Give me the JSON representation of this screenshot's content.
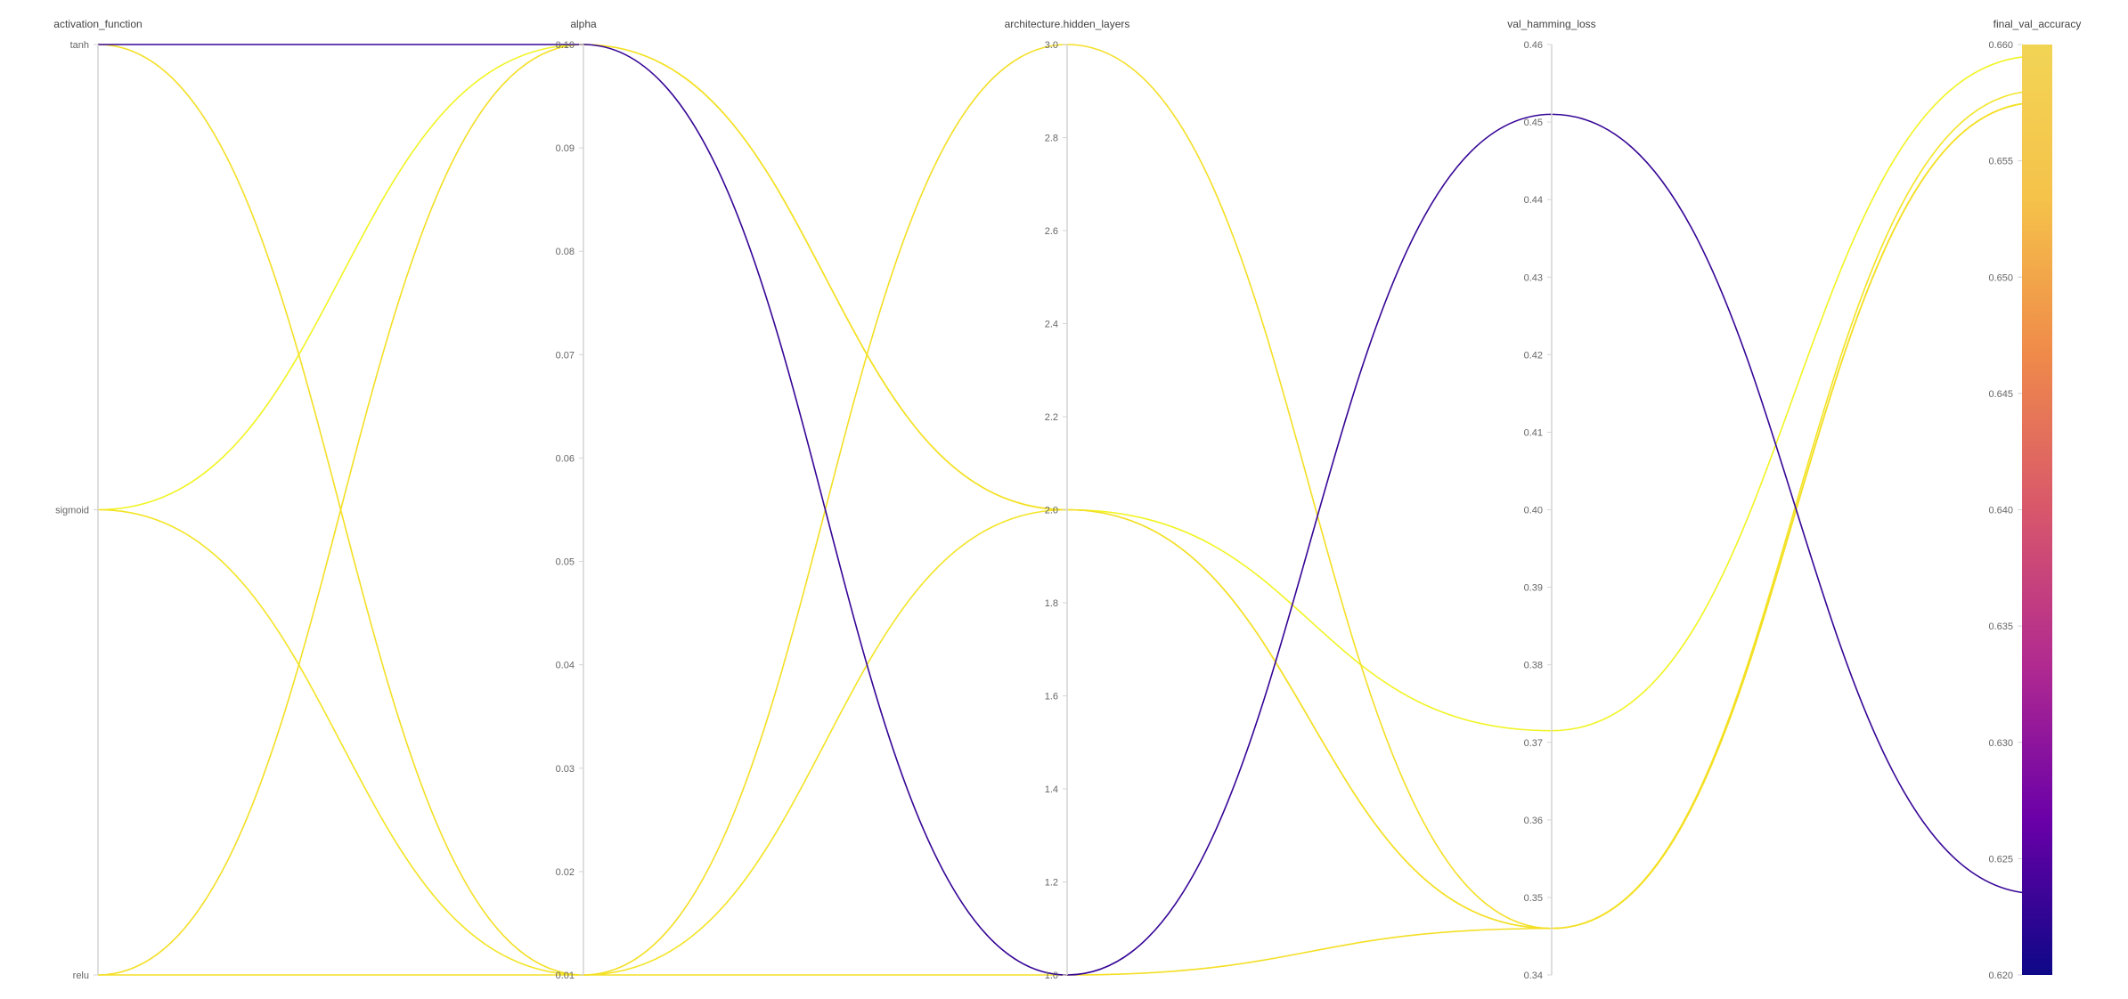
{
  "chart_data": {
    "type": "parallel_coordinates",
    "axes": [
      {
        "name": "activation_function",
        "kind": "categorical",
        "categories": [
          "tanh",
          "sigmoid",
          "relu"
        ]
      },
      {
        "name": "alpha",
        "kind": "numeric",
        "range": [
          0.01,
          0.1
        ],
        "ticks": [
          "0.10",
          "0.09",
          "0.08",
          "0.07",
          "0.06",
          "0.05",
          "0.04",
          "0.03",
          "0.02",
          "0.01"
        ]
      },
      {
        "name": "architecture.hidden_layers",
        "kind": "numeric",
        "range": [
          1.0,
          3.0
        ],
        "ticks": [
          "3.0",
          "2.8",
          "2.6",
          "2.4",
          "2.2",
          "2.0",
          "1.8",
          "1.6",
          "1.4",
          "1.2",
          "1.0"
        ]
      },
      {
        "name": "val_hamming_loss",
        "kind": "numeric",
        "range": [
          0.34,
          0.46
        ],
        "ticks": [
          "0.46",
          "0.45",
          "0.44",
          "0.43",
          "0.42",
          "0.41",
          "0.40",
          "0.39",
          "0.38",
          "0.37",
          "0.36",
          "0.35",
          "0.34"
        ]
      },
      {
        "name": "final_val_accuracy",
        "kind": "numeric",
        "range": [
          0.62,
          0.66
        ],
        "ticks": [
          "0.660",
          "0.655",
          "0.650",
          "0.645",
          "0.640",
          "0.635",
          "0.630",
          "0.625",
          "0.620"
        ]
      }
    ],
    "colorscale": {
      "axis": "final_val_accuracy",
      "range": [
        0.62,
        0.66
      ],
      "stops": [
        "#0d0887",
        "#5b02a3",
        "#9a179b",
        "#cb4678",
        "#eb7852",
        "#fbb32f",
        "#f0f921"
      ],
      "bar_stops": [
        "#0d0887",
        "#6a00a8",
        "#b12a90",
        "#d8576b",
        "#ef8a4a",
        "#f5c24a",
        "#f2d455"
      ]
    },
    "runs": [
      {
        "activation_function": "tanh",
        "alpha": 0.1,
        "architecture.hidden_layers": 1.0,
        "val_hamming_loss": 0.451,
        "final_val_accuracy": 0.6235
      },
      {
        "activation_function": "tanh",
        "alpha": 0.01,
        "architecture.hidden_layers": 3.0,
        "val_hamming_loss": 0.346,
        "final_val_accuracy": 0.6575
      },
      {
        "activation_function": "sigmoid",
        "alpha": 0.1,
        "architecture.hidden_layers": 2.0,
        "val_hamming_loss": 0.3715,
        "final_val_accuracy": 0.6595
      },
      {
        "activation_function": "sigmoid",
        "alpha": 0.01,
        "architecture.hidden_layers": 2.0,
        "val_hamming_loss": 0.346,
        "final_val_accuracy": 0.658
      },
      {
        "activation_function": "relu",
        "alpha": 0.1,
        "architecture.hidden_layers": 2.0,
        "val_hamming_loss": 0.346,
        "final_val_accuracy": 0.6575
      },
      {
        "activation_function": "relu",
        "alpha": 0.01,
        "architecture.hidden_layers": 1.0,
        "val_hamming_loss": 0.346,
        "final_val_accuracy": 0.6575
      }
    ]
  }
}
